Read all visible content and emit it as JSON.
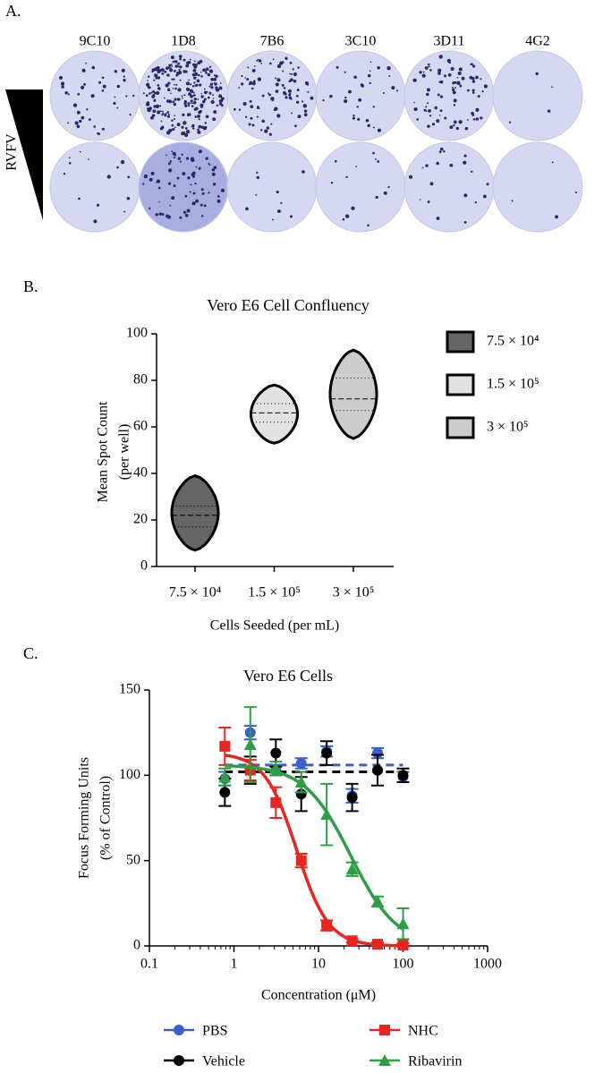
{
  "panel_labels": [
    "A.",
    "B.",
    "C."
  ],
  "wells": {
    "columns": [
      "9C10",
      "1D8",
      "7B6",
      "3C10",
      "3D11",
      "4G2"
    ],
    "row_label": "RVFV"
  },
  "chart_data": [
    {
      "type": "violin",
      "title": "Vero E6 Cell Confluency",
      "categories": [
        "7.5 × 10⁴",
        "1.5 × 10⁵",
        "3 × 10⁵"
      ],
      "x_label": "Cells Seeded (per mL)",
      "y_label": [
        "Mean Spot Count",
        "(per well)"
      ],
      "ylim": [
        0,
        100
      ],
      "yticks": [
        0,
        20,
        40,
        60,
        80,
        100
      ],
      "min": [
        7,
        53,
        55
      ],
      "q1": [
        17,
        62,
        67
      ],
      "median": [
        22,
        66,
        72
      ],
      "q3": [
        26,
        70,
        81
      ],
      "max": [
        39,
        78,
        93
      ],
      "colors": [
        "#666666",
        "#e2e2e2",
        "#cccccc"
      ],
      "legend": true
    },
    {
      "type": "dose-response",
      "title": "Vero E6 Cells",
      "x_label": "Concentration (μM)",
      "y_label": [
        "Focus Forming Units",
        "(% of Control)"
      ],
      "xscale": "log",
      "xlim": [
        0.1,
        1000
      ],
      "xticks": [
        0.1,
        1,
        10,
        100,
        1000
      ],
      "ylim": [
        0,
        150
      ],
      "yticks": [
        0,
        50,
        100,
        150
      ],
      "x": [
        0.78,
        1.56,
        3.13,
        6.25,
        12.5,
        25,
        50,
        100
      ],
      "series": [
        {
          "name": "PBS",
          "color": "#3a5fc8",
          "marker": "circle",
          "values": [
            98,
            125,
            103,
            107,
            114,
            88,
            113,
            99
          ],
          "errors": [
            4,
            4,
            3,
            3,
            3,
            4,
            3,
            3
          ],
          "fit_level": 106
        },
        {
          "name": "Vehicle",
          "color": "#000000",
          "marker": "circle",
          "values": [
            90,
            103,
            113,
            89,
            113,
            87,
            103,
            100
          ],
          "errors": [
            8,
            8,
            8,
            10,
            7,
            8,
            9,
            4
          ],
          "fit_level": 102
        },
        {
          "name": "NHC",
          "color": "#e8261f",
          "marker": "square",
          "values": [
            117,
            103,
            84,
            50,
            12,
            3,
            1,
            0.5
          ],
          "errors": [
            11,
            6,
            9,
            4,
            3,
            1,
            1,
            1
          ],
          "fit": {
            "top": 113,
            "bottom": 0,
            "ec50": 5.5,
            "hill": 2.3
          }
        },
        {
          "name": "Ribavirin",
          "color": "#2e9e44",
          "marker": "triangle",
          "values": [
            99,
            118,
            104,
            96,
            77,
            45,
            26,
            13
          ],
          "errors": [
            5,
            22,
            4,
            6,
            18,
            4,
            3,
            9
          ],
          "fit": {
            "top": 106,
            "bottom": 0,
            "ec50": 24,
            "hill": 1.6
          }
        }
      ]
    }
  ]
}
